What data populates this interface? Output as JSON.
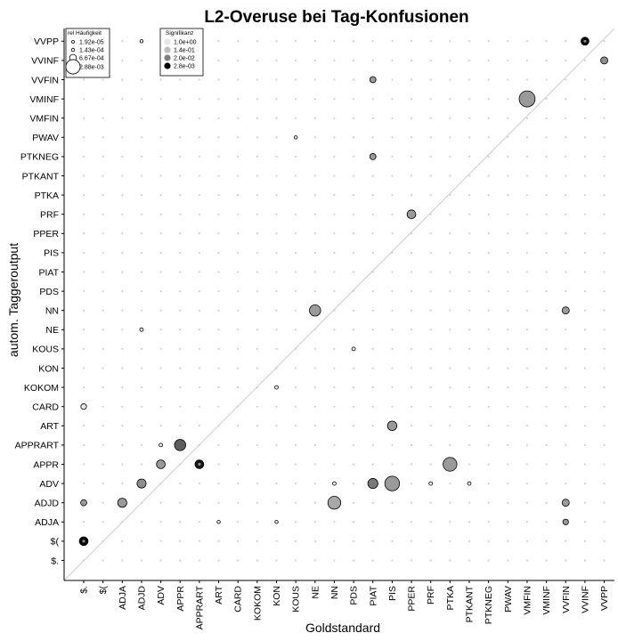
{
  "chart_data": {
    "type": "scatter",
    "title": "L2-Overuse bei Tag-Konfusionen",
    "xlabel": "Goldstandard",
    "ylabel": "autom. Taggeroutput",
    "x_categories": [
      "$.",
      "$(",
      "ADJA",
      "ADJD",
      "ADV",
      "APPR",
      "APPRART",
      "ART",
      "CARD",
      "KOKOM",
      "KON",
      "KOUS",
      "NE",
      "NN",
      "PDS",
      "PIAT",
      "PIS",
      "PPER",
      "PRF",
      "PTKA",
      "PTKANT",
      "PTKNEG",
      "PWAV",
      "VMFIN",
      "VMINF",
      "VVFIN",
      "VVINF",
      "VVPP"
    ],
    "y_categories": [
      "$.",
      "$(",
      "ADJA",
      "ADJD",
      "ADV",
      "APPR",
      "APPRART",
      "ART",
      "CARD",
      "KOKOM",
      "KON",
      "KOUS",
      "NE",
      "NN",
      "PDS",
      "PIAT",
      "PIS",
      "PPER",
      "PRF",
      "PTKA",
      "PTKANT",
      "PTKNEG",
      "PWAV",
      "VMFIN",
      "VMINF",
      "VVFIN",
      "VVINF",
      "VVPP"
    ],
    "diagonal": true,
    "grid_dots": true,
    "points": [
      {
        "x": "$.",
        "y": "$(",
        "size": 0.0006,
        "signif": 0.0028
      },
      {
        "x": "$.",
        "y": "ADJD",
        "size": 0.0003,
        "signif": 0.14
      },
      {
        "x": "$.",
        "y": "CARD",
        "size": 0.00025,
        "signif": 1.0
      },
      {
        "x": "ADJA",
        "y": "ADJD",
        "size": 0.00065,
        "signif": 0.14
      },
      {
        "x": "ADJD",
        "y": "ADV",
        "size": 0.00065,
        "signif": 0.1
      },
      {
        "x": "ADJD",
        "y": "NE",
        "size": 0.0001,
        "signif": 1.0
      },
      {
        "x": "ADJD",
        "y": "VVPP",
        "size": 5e-05,
        "signif": 1.0
      },
      {
        "x": "ADV",
        "y": "APPR",
        "size": 0.0006,
        "signif": 0.14
      },
      {
        "x": "ADV",
        "y": "APPRART",
        "size": 0.0001,
        "signif": 1.0
      },
      {
        "x": "APPR",
        "y": "APPRART",
        "size": 0.001,
        "signif": 0.03
      },
      {
        "x": "APPRART",
        "y": "APPR",
        "size": 0.0006,
        "signif": 0.005
      },
      {
        "x": "ART",
        "y": "ADJA",
        "size": 5e-05,
        "signif": 1.0
      },
      {
        "x": "KON",
        "y": "ADJA",
        "size": 5e-05,
        "signif": 1.0
      },
      {
        "x": "KON",
        "y": "KOKOM",
        "size": 0.0001,
        "signif": 1.0
      },
      {
        "x": "KOUS",
        "y": "PWAV",
        "size": 5e-05,
        "signif": 1.0
      },
      {
        "x": "NE",
        "y": "NN",
        "size": 0.001,
        "signif": 0.14
      },
      {
        "x": "NN",
        "y": "ADV",
        "size": 0.0001,
        "signif": 1.0
      },
      {
        "x": "NN",
        "y": "ADJD",
        "size": 0.0013,
        "signif": 0.2
      },
      {
        "x": "PDS",
        "y": "KOUS",
        "size": 0.0001,
        "signif": 1.0
      },
      {
        "x": "PIAT",
        "y": "ADV",
        "size": 0.0008,
        "signif": 0.06
      },
      {
        "x": "PIAT",
        "y": "PTKNEG",
        "size": 0.0003,
        "signif": 0.14
      },
      {
        "x": "PIAT",
        "y": "VVFIN",
        "size": 0.0003,
        "signif": 0.14
      },
      {
        "x": "PIS",
        "y": "ADV",
        "size": 0.0017,
        "signif": 0.14
      },
      {
        "x": "PIS",
        "y": "ART",
        "size": 0.0007,
        "signif": 0.14
      },
      {
        "x": "PPER",
        "y": "PRF",
        "size": 0.0006,
        "signif": 0.14
      },
      {
        "x": "PRF",
        "y": "ADV",
        "size": 0.0001,
        "signif": 1.0
      },
      {
        "x": "PTKA",
        "y": "APPR",
        "size": 0.0015,
        "signif": 0.14
      },
      {
        "x": "PTKANT",
        "y": "ADV",
        "size": 0.0001,
        "signif": 1.0
      },
      {
        "x": "VMFIN",
        "y": "VMINF",
        "size": 0.002,
        "signif": 0.14
      },
      {
        "x": "VVFIN",
        "y": "ADJA",
        "size": 0.00025,
        "signif": 0.14
      },
      {
        "x": "VVFIN",
        "y": "ADJD",
        "size": 0.0004,
        "signif": 0.14
      },
      {
        "x": "VVFIN",
        "y": "NN",
        "size": 0.0004,
        "signif": 0.14
      },
      {
        "x": "VVINF",
        "y": "VVPP",
        "size": 0.0005,
        "signif": 0.0028
      },
      {
        "x": "VVPP",
        "y": "VVINF",
        "size": 0.0004,
        "signif": 0.1
      }
    ],
    "legend_size": {
      "title": "rel Häufigkeit",
      "entries": [
        {
          "label": "1.92e-05",
          "value": 1.92e-05
        },
        {
          "label": "1.43e-04",
          "value": 0.000143
        },
        {
          "label": "6.67e-04",
          "value": 0.000667
        },
        {
          "label": "2.88e-03",
          "value": 0.00288
        }
      ]
    },
    "legend_signif": {
      "title": "Signifikanz",
      "entries": [
        {
          "label": "1.0e+00",
          "value": 1.0,
          "color": "#e6e6e6"
        },
        {
          "label": "1.4e-01",
          "value": 0.14,
          "color": "#bdbdbd"
        },
        {
          "label": "2.0e-02",
          "value": 0.02,
          "color": "#7f7f7f"
        },
        {
          "label": "2.8e-03",
          "value": 0.0028,
          "color": "#000000"
        }
      ]
    },
    "legend_placement": "top-left"
  }
}
